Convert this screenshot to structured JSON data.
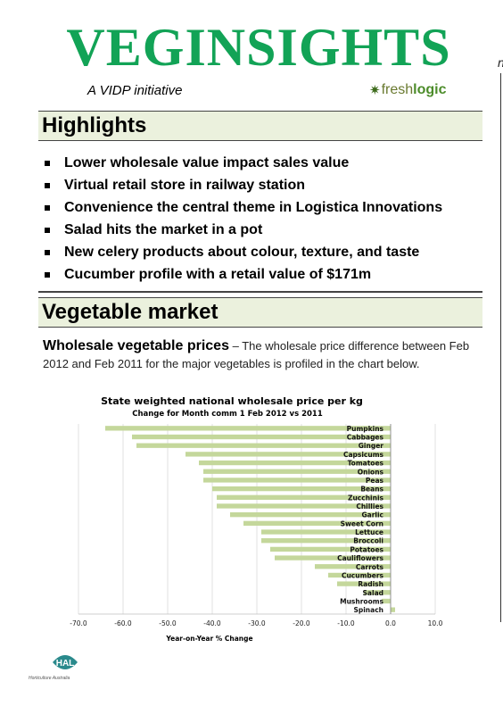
{
  "masthead": {
    "title": "VEGINSIGHTS",
    "side_letter": "n",
    "tagline": "A VIDP initiative"
  },
  "brand": {
    "part1": "fresh",
    "part2": "logic"
  },
  "highlights": {
    "heading": "Highlights",
    "items": [
      "Lower wholesale value impact sales value",
      "Virtual retail store in railway station",
      "Convenience the central theme in Logistica Innovations",
      "Salad hits the market in a pot",
      "New celery products about colour, texture, and taste",
      "Cucumber profile with a retail value of $171m"
    ]
  },
  "vegetable_market": {
    "heading": "Vegetable market",
    "lead": "Wholesale vegetable prices",
    "text": " – The wholesale price difference between Feb 2012 and Feb 2011 for the major vegetables is profiled in the chart below."
  },
  "chart_data": {
    "type": "bar",
    "orientation": "horizontal",
    "title": "State weighted national wholesale price per kg",
    "subtitle": "Change for Month comm 1 Feb 2012 vs 2011",
    "xlabel": "Year-on-Year % Change",
    "xlim": [
      -70,
      10
    ],
    "xticks": [
      "-70.0",
      "-60.0",
      "-50.0",
      "-40.0",
      "-30.0",
      "-20.0",
      "-10.0",
      "0.0",
      "10.0"
    ],
    "bar_color": "#c4d79b",
    "grid": true,
    "categories": [
      "Pumpkins",
      "Cabbages",
      "Ginger",
      "Capsicums",
      "Tomatoes",
      "Onions",
      "Peas",
      "Beans",
      "Zucchinis",
      "Chillies",
      "Garlic",
      "Sweet Corn",
      "Lettuce",
      "Broccoli",
      "Potatoes",
      "Cauliflowers",
      "Carrots",
      "Cucumbers",
      "Radish",
      "Salad",
      "Mushrooms",
      "Spinach"
    ],
    "values": [
      -64,
      -58,
      -57,
      -46,
      -43,
      -42,
      -42,
      -40,
      -39,
      -39,
      -36,
      -33,
      -29,
      -29,
      -27,
      -26,
      -17,
      -14,
      -12,
      -6,
      -2,
      1
    ]
  },
  "footer": {
    "logo_text": "HAL",
    "logo_sub": "Horticulture Australia"
  }
}
